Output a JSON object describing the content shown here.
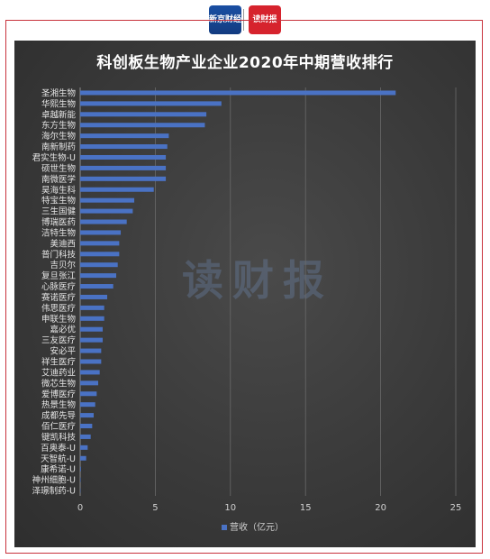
{
  "header": {
    "left_logo_text": "新京财经",
    "right_logo_text": "读财报"
  },
  "watermark": "读财报",
  "chart_data": {
    "type": "bar",
    "orientation": "horizontal",
    "title": "科创板生物产业企业2020年中期营收排行",
    "categories": [
      "圣湘生物",
      "华熙生物",
      "卓越新能",
      "东方生物",
      "海尔生物",
      "南新制药",
      "君实生物-U",
      "硕世生物",
      "南微医学",
      "昊海生科",
      "特宝生物",
      "三生国健",
      "博瑞医药",
      "洁特生物",
      "美迪西",
      "普门科技",
      "吉贝尔",
      "复旦张江",
      "心脉医疗",
      "赛诺医疗",
      "伟思医疗",
      "申联生物",
      "嘉必优",
      "三友医疗",
      "安必平",
      "祥生医疗",
      "艾迪药业",
      "微芯生物",
      "爱博医疗",
      "热景生物",
      "成都先导",
      "佰仁医疗",
      "键凯科技",
      "百奥泰-U",
      "天智航-U",
      "康希诺-U",
      "神州细胞-U",
      "泽璟制药-U"
    ],
    "series": [
      {
        "name": "营收（亿元）",
        "color": "#4a72c4",
        "values": [
          21.0,
          9.4,
          8.4,
          8.3,
          5.9,
          5.8,
          5.7,
          5.7,
          5.7,
          4.9,
          3.6,
          3.5,
          3.1,
          2.7,
          2.6,
          2.6,
          2.5,
          2.4,
          2.2,
          1.8,
          1.6,
          1.6,
          1.5,
          1.5,
          1.4,
          1.4,
          1.3,
          1.2,
          1.1,
          1.0,
          0.9,
          0.8,
          0.7,
          0.5,
          0.4,
          0.05,
          0.03,
          0.02
        ]
      }
    ],
    "xlim": [
      0,
      25
    ],
    "xticks": [
      "0",
      "5",
      "10",
      "15",
      "20",
      "25"
    ],
    "grid": true,
    "legend": "bottom"
  }
}
